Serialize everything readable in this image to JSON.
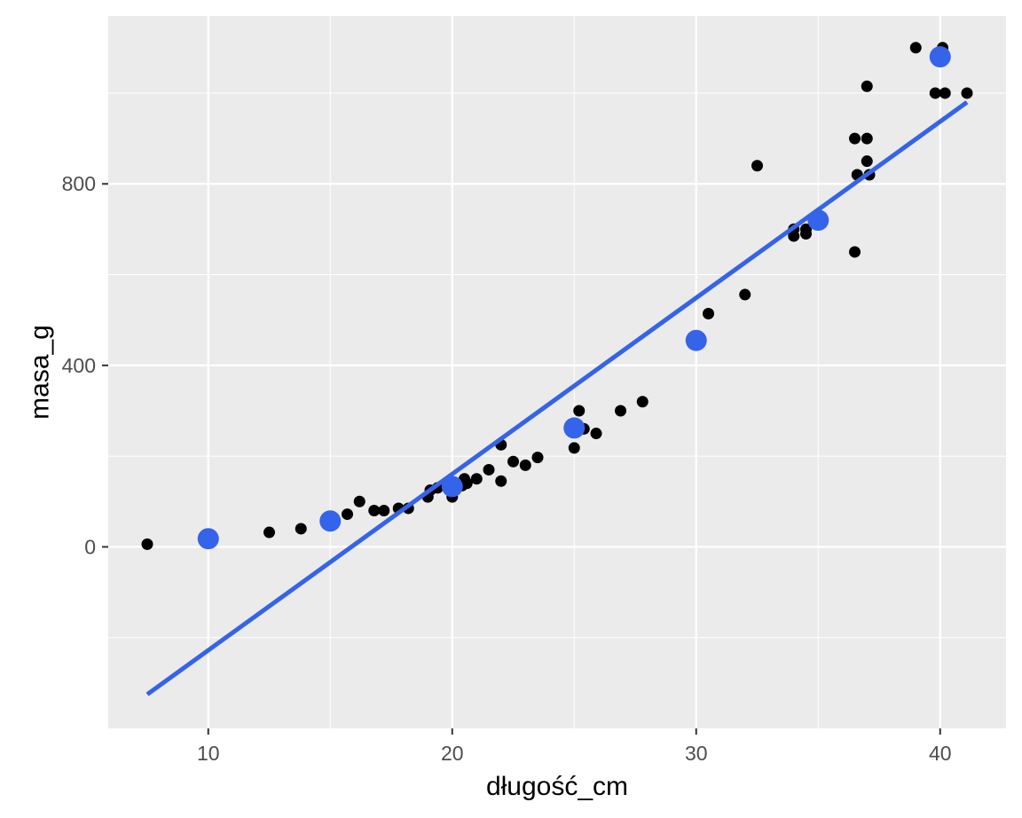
{
  "chart_data": {
    "type": "scatter",
    "xlabel": "długość_cm",
    "ylabel": "masa_g",
    "xlim": [
      5.9,
      42.7
    ],
    "ylim": [
      -400,
      1170
    ],
    "x_ticks": [
      10,
      20,
      30,
      40
    ],
    "x_tick_labels": [
      "10",
      "20",
      "30",
      "40"
    ],
    "y_ticks": [
      0,
      400,
      800
    ],
    "y_tick_labels": [
      "0",
      "400",
      "800"
    ],
    "x_minor_ticks": [
      15,
      25,
      35
    ],
    "y_minor_ticks": [
      -200,
      200,
      600,
      1000
    ],
    "grid": true,
    "legend": "none",
    "colors": {
      "panel": "#ebebeb",
      "grid": "#ffffff",
      "points": "#000000",
      "highlight": "#3563e9",
      "line": "#3563e9"
    },
    "series": [
      {
        "type": "scatter",
        "color": "#000000",
        "points": [
          [
            7.5,
            6
          ],
          [
            12.5,
            32
          ],
          [
            13.8,
            40
          ],
          [
            15.7,
            72
          ],
          [
            16.2,
            100
          ],
          [
            16.8,
            80
          ],
          [
            17.2,
            80
          ],
          [
            17.8,
            85
          ],
          [
            18.2,
            85
          ],
          [
            19.0,
            110
          ],
          [
            19.1,
            125
          ],
          [
            19.4,
            130
          ],
          [
            20.0,
            110
          ],
          [
            20.4,
            135
          ],
          [
            20.5,
            150
          ],
          [
            20.6,
            140
          ],
          [
            21.0,
            150
          ],
          [
            21.5,
            170
          ],
          [
            22.0,
            145
          ],
          [
            22.0,
            225
          ],
          [
            22.5,
            188
          ],
          [
            23.0,
            180
          ],
          [
            23.5,
            197
          ],
          [
            25.0,
            218
          ],
          [
            25.2,
            300
          ],
          [
            25.4,
            260
          ],
          [
            25.9,
            250
          ],
          [
            26.9,
            300
          ],
          [
            27.8,
            320
          ],
          [
            30.5,
            514
          ],
          [
            32.0,
            556
          ],
          [
            32.5,
            840
          ],
          [
            34.0,
            685
          ],
          [
            34.0,
            700
          ],
          [
            34.5,
            690
          ],
          [
            34.5,
            700
          ],
          [
            36.5,
            650
          ],
          [
            36.5,
            900
          ],
          [
            36.6,
            820
          ],
          [
            37.0,
            850
          ],
          [
            37.0,
            900
          ],
          [
            37.0,
            1015
          ],
          [
            37.1,
            820
          ],
          [
            39.0,
            1100
          ],
          [
            39.8,
            1000
          ],
          [
            40.1,
            1100
          ],
          [
            40.2,
            1000
          ],
          [
            41.1,
            1000
          ]
        ]
      },
      {
        "type": "scatter",
        "color": "#3563e9",
        "points": [
          [
            10,
            18
          ],
          [
            15,
            57
          ],
          [
            20,
            133
          ],
          [
            25,
            262
          ],
          [
            30,
            455
          ],
          [
            35,
            720
          ],
          [
            40,
            1080
          ]
        ]
      },
      {
        "type": "line",
        "color": "#3563e9",
        "points": [
          [
            7.5,
            -325
          ],
          [
            41.1,
            980
          ]
        ]
      }
    ]
  }
}
